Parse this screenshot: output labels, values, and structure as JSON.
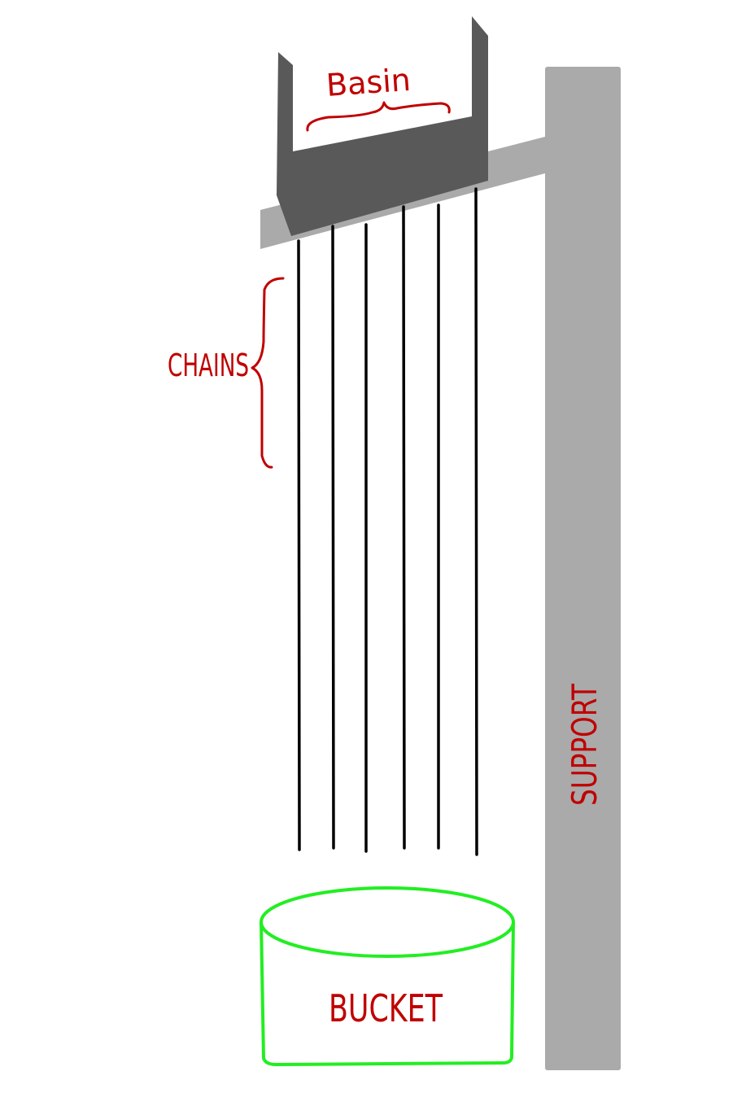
{
  "labels": {
    "basin": "Basin",
    "chains": "CHAINS",
    "support": "SUPPORT",
    "bucket": "BUCKET"
  },
  "colors": {
    "support": "#aaaaaa",
    "basin": "#595959",
    "chain": "#000000",
    "label": "#c00000",
    "bucket_outline": "#22ee22",
    "background": "#ffffff"
  },
  "chain_count": 6
}
